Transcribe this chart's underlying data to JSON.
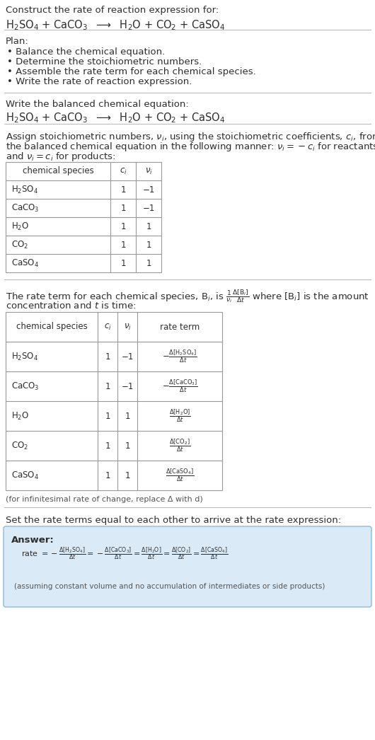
{
  "bg_color": "#ffffff",
  "text_color": "#2d2d2d",
  "table_border_color": "#999999",
  "answer_bg_color": "#daeaf7",
  "answer_border_color": "#88bbdd",
  "title_line1": "Construct the rate of reaction expression for:",
  "title_line2": "H$_2$SO$_4$ + CaCO$_3$  $\\longrightarrow$  H$_2$O + CO$_2$ + CaSO$_4$",
  "plan_header": "Plan:",
  "plan_items": [
    "• Balance the chemical equation.",
    "• Determine the stoichiometric numbers.",
    "• Assemble the rate term for each chemical species.",
    "• Write the rate of reaction expression."
  ],
  "balanced_header": "Write the balanced chemical equation:",
  "balanced_eq": "H$_2$SO$_4$ + CaCO$_3$  $\\longrightarrow$  H$_2$O + CO$_2$ + CaSO$_4$",
  "assign_text1": "Assign stoichiometric numbers, $\\nu_i$, using the stoichiometric coefficients, $c_i$, from",
  "assign_text2": "the balanced chemical equation in the following manner: $\\nu_i = -c_i$ for reactants",
  "assign_text3": "and $\\nu_i = c_i$ for products:",
  "table1_headers": [
    "chemical species",
    "$c_i$",
    "$\\nu_i$"
  ],
  "table1_data": [
    [
      "H$_2$SO$_4$",
      "1",
      "−1"
    ],
    [
      "CaCO$_3$",
      "1",
      "−1"
    ],
    [
      "H$_2$O",
      "1",
      "1"
    ],
    [
      "CO$_2$",
      "1",
      "1"
    ],
    [
      "CaSO$_4$",
      "1",
      "1"
    ]
  ],
  "rate_text1": "The rate term for each chemical species, B$_i$, is $\\frac{1}{\\nu_i}\\frac{\\Delta[\\mathrm{B}_i]}{\\Delta t}$ where [B$_i$] is the amount",
  "rate_text2": "concentration and $t$ is time:",
  "table2_headers": [
    "chemical species",
    "$c_i$",
    "$\\nu_i$",
    "rate term"
  ],
  "table2_data": [
    [
      "H$_2$SO$_4$",
      "1",
      "−1",
      "$-\\frac{\\Delta[\\mathrm{H_2SO_4}]}{\\Delta t}$"
    ],
    [
      "CaCO$_3$",
      "1",
      "−1",
      "$-\\frac{\\Delta[\\mathrm{CaCO_3}]}{\\Delta t}$"
    ],
    [
      "H$_2$O",
      "1",
      "1",
      "$\\frac{\\Delta[\\mathrm{H_2O}]}{\\Delta t}$"
    ],
    [
      "CO$_2$",
      "1",
      "1",
      "$\\frac{\\Delta[\\mathrm{CO_2}]}{\\Delta t}$"
    ],
    [
      "CaSO$_4$",
      "1",
      "1",
      "$\\frac{\\Delta[\\mathrm{CaSO_4}]}{\\Delta t}$"
    ]
  ],
  "infinitesimal_note": "(for infinitesimal rate of change, replace Δ with d)",
  "set_equal_text": "Set the rate terms equal to each other to arrive at the rate expression:",
  "answer_label": "Answer:",
  "answer_note": "(assuming constant volume and no accumulation of intermediates or side products)"
}
